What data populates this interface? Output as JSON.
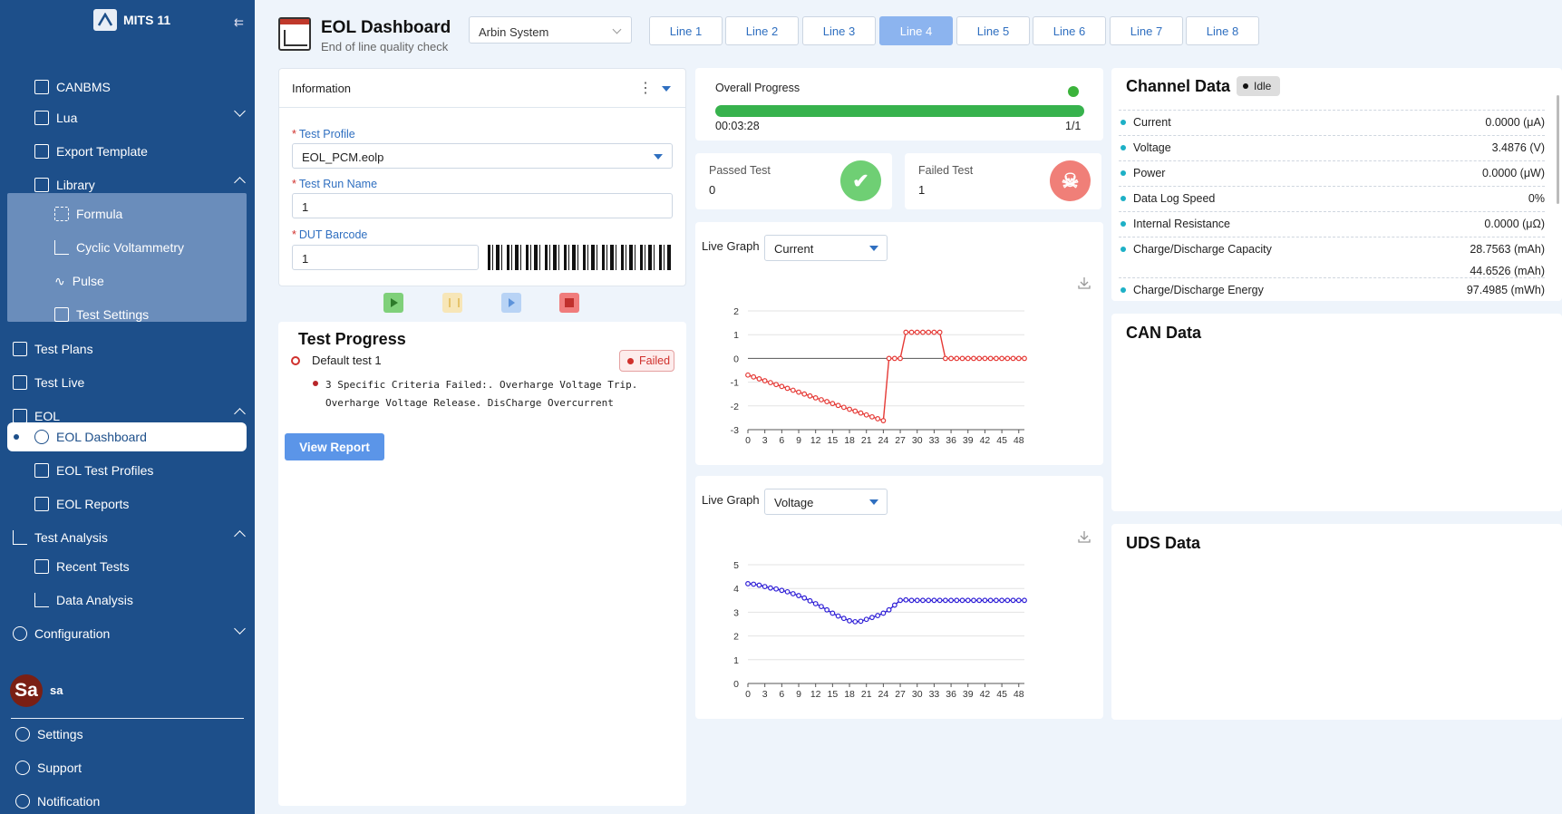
{
  "app": {
    "name": "MITS 11"
  },
  "sidebar": {
    "items": [
      {
        "label": "CANBMS"
      },
      {
        "label": "Lua"
      },
      {
        "label": "Export Template"
      },
      {
        "label": "Library"
      },
      {
        "label": "Formula"
      },
      {
        "label": "Cyclic Voltammetry"
      },
      {
        "label": "Pulse"
      },
      {
        "label": "Test Settings"
      },
      {
        "label": "Test Plans"
      },
      {
        "label": "Test Live"
      },
      {
        "label": "EOL"
      },
      {
        "label": "EOL Dashboard"
      },
      {
        "label": "EOL Test Profiles"
      },
      {
        "label": "EOL Reports"
      },
      {
        "label": "Test Analysis"
      },
      {
        "label": "Recent Tests"
      },
      {
        "label": "Data Analysis"
      },
      {
        "label": "Configuration"
      }
    ],
    "user": {
      "initials": "Sa",
      "name": "sa"
    },
    "bottom": [
      {
        "label": "Settings"
      },
      {
        "label": "Support"
      },
      {
        "label": "Notification"
      }
    ]
  },
  "header": {
    "title": "EOL Dashboard",
    "subtitle": "End of line quality check",
    "system_select": "Arbin System",
    "tabs": [
      "Line 1",
      "Line 2",
      "Line 3",
      "Line 4",
      "Line 5",
      "Line 6",
      "Line 7",
      "Line 8"
    ],
    "active_tab": "Line 4"
  },
  "information": {
    "title": "Information",
    "test_profile_label": "Test Profile",
    "test_profile_value": "EOL_PCM.eolp",
    "run_name_label": "Test Run Name",
    "run_name_value": "1",
    "barcode_label": "DUT Barcode",
    "barcode_value": "1"
  },
  "test_progress": {
    "title": "Test Progress",
    "test_name": "Default test 1",
    "status": "Failed",
    "message": "3 Specific Criteria Failed:. Overharge Voltage Trip. Overharge Voltage Release. DisCharge Overcurrent",
    "view_report": "View Report"
  },
  "overall": {
    "label": "Overall Progress",
    "elapsed": "00:03:28",
    "count": "1/1",
    "progress": 1.0
  },
  "passed": {
    "label": "Passed Test",
    "value": "0"
  },
  "failed": {
    "label": "Failed Test",
    "value": "1"
  },
  "graphs": [
    {
      "label": "Live Graph",
      "selected": "Current"
    },
    {
      "label": "Live Graph",
      "selected": "Voltage"
    }
  ],
  "chart_data": [
    {
      "type": "line",
      "title": "",
      "x": [
        0,
        1,
        2,
        3,
        4,
        5,
        6,
        7,
        8,
        9,
        10,
        11,
        12,
        13,
        14,
        15,
        16,
        17,
        18,
        19,
        20,
        21,
        22,
        23,
        24,
        25,
        26,
        27,
        28,
        29,
        30,
        31,
        32,
        33,
        34,
        35,
        36,
        37,
        38,
        39,
        40,
        41,
        42,
        43,
        44,
        45,
        46,
        47,
        48,
        49
      ],
      "series": [
        {
          "values": [
            -0.7,
            -0.78,
            -0.86,
            -0.94,
            -1.02,
            -1.1,
            -1.18,
            -1.26,
            -1.34,
            -1.42,
            -1.5,
            -1.58,
            -1.66,
            -1.74,
            -1.82,
            -1.9,
            -1.98,
            -2.06,
            -2.14,
            -2.22,
            -2.3,
            -2.38,
            -2.46,
            -2.54,
            -2.62,
            0.0,
            0.0,
            0.0,
            1.1,
            1.1,
            1.1,
            1.1,
            1.1,
            1.1,
            1.1,
            0.0,
            0.0,
            0.0,
            0.0,
            0.0,
            0.0,
            0.0,
            0.0,
            0.0,
            0.0,
            0.0,
            0.0,
            0.0,
            0.0,
            0.0
          ],
          "color": "#e53935"
        }
      ],
      "x_ticks": [
        0,
        3,
        6,
        9,
        12,
        15,
        18,
        21,
        24,
        27,
        30,
        33,
        36,
        39,
        42,
        45,
        48
      ],
      "ylim": [
        -3,
        2
      ],
      "y_ticks": [
        -3,
        -2,
        -1,
        0,
        1,
        2
      ],
      "grid": true
    },
    {
      "type": "line",
      "title": "",
      "x": [
        0,
        1,
        2,
        3,
        4,
        5,
        6,
        7,
        8,
        9,
        10,
        11,
        12,
        13,
        14,
        15,
        16,
        17,
        18,
        19,
        20,
        21,
        22,
        23,
        24,
        25,
        26,
        27,
        28,
        29,
        30,
        31,
        32,
        33,
        34,
        35,
        36,
        37,
        38,
        39,
        40,
        41,
        42,
        43,
        44,
        45,
        46,
        47,
        48,
        49
      ],
      "series": [
        {
          "values": [
            4.2,
            4.18,
            4.14,
            4.08,
            4.02,
            3.98,
            3.92,
            3.86,
            3.78,
            3.7,
            3.6,
            3.48,
            3.36,
            3.24,
            3.1,
            2.96,
            2.84,
            2.74,
            2.64,
            2.6,
            2.62,
            2.7,
            2.78,
            2.86,
            2.96,
            3.1,
            3.3,
            3.5,
            3.52,
            3.5,
            3.5,
            3.5,
            3.5,
            3.5,
            3.5,
            3.5,
            3.5,
            3.5,
            3.5,
            3.5,
            3.5,
            3.5,
            3.5,
            3.5,
            3.5,
            3.5,
            3.5,
            3.5,
            3.5,
            3.5
          ],
          "color": "#2f1fd6"
        }
      ],
      "x_ticks": [
        0,
        3,
        6,
        9,
        12,
        15,
        18,
        21,
        24,
        27,
        30,
        33,
        36,
        39,
        42,
        45,
        48
      ],
      "ylim": [
        0,
        5
      ],
      "y_ticks": [
        0,
        1,
        2,
        3,
        4,
        5
      ],
      "grid": true
    }
  ],
  "channel": {
    "title": "Channel Data",
    "status": "Idle",
    "rows": [
      {
        "k": "Current",
        "v": "0.0000 (μA)"
      },
      {
        "k": "Voltage",
        "v": "3.4876 (V)"
      },
      {
        "k": "Power",
        "v": "0.0000 (μW)"
      },
      {
        "k": "Data Log Speed",
        "v": "0%"
      },
      {
        "k": "Internal Resistance",
        "v": "0.0000 (μΩ)"
      },
      {
        "k": "Charge/Discharge Capacity",
        "v": "28.7563 (mAh)",
        "v2": "44.6526 (mAh)"
      },
      {
        "k": "Charge/Discharge Energy",
        "v": "97.4985 (mWh)"
      }
    ]
  },
  "can": {
    "title": "CAN Data"
  },
  "uds": {
    "title": "UDS Data"
  },
  "colors": {
    "sidebar": "#1d4f8a",
    "accent": "#2f6fc0",
    "success": "#37b24d",
    "danger": "#d0312d"
  }
}
